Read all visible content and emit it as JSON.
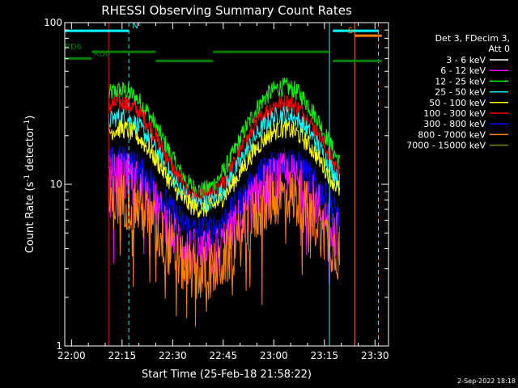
{
  "chart_data": {
    "type": "line",
    "title": "RHESSI Observing Summary Count Rates",
    "xlabel": "Start Time (25-Feb-18 21:58:22)",
    "ylabel_main": "Count Rate (s",
    "ylabel_sup1": "-1",
    "ylabel_mid": " detector",
    "ylabel_sup2": "-1",
    "ylabel_end": ")",
    "y_scale": "log",
    "ylim": [
      1,
      100
    ],
    "xlim_minutes": [
      -2,
      94
    ],
    "x_tick_labels": [
      "22:00",
      "22:15",
      "22:30",
      "22:45",
      "23:00",
      "23:15",
      "23:30"
    ],
    "x_tick_minutes": [
      0,
      15,
      30,
      45,
      60,
      75,
      90
    ],
    "y_tick_labels": [
      "1",
      "10",
      "100"
    ],
    "y_tick_values": [
      1,
      10,
      100
    ],
    "legend_header": [
      "Det 3, FDecim 3,",
      "Att 0"
    ],
    "legend_placement": "right",
    "series": [
      {
        "name": "3 - 6 keV",
        "color": "#ffffff"
      },
      {
        "name": "6 - 12 keV",
        "color": "#ff00ff"
      },
      {
        "name": "12 - 25 keV",
        "color": "#00ff00"
      },
      {
        "name": "25 - 50 keV",
        "color": "#00ffff"
      },
      {
        "name": "50 - 100 keV",
        "color": "#ffff00"
      },
      {
        "name": "100 - 300 keV",
        "color": "#ff0000"
      },
      {
        "name": "300 - 800 keV",
        "color": "#0000ff"
      },
      {
        "name": "800 - 7000 keV",
        "color": "#ff8000"
      },
      {
        "name": "7000 - 15000 keV",
        "color": "#808000"
      }
    ],
    "profiles": [
      {
        "color": "#00ff00",
        "base": 7.5,
        "peak1": 38,
        "peak2": 40,
        "noise": 0.06
      },
      {
        "color": "#ff0000",
        "base": 6.8,
        "peak1": 32,
        "peak2": 32,
        "noise": 0.06
      },
      {
        "color": "#00ffff",
        "base": 6.5,
        "peak1": 26,
        "peak2": 27,
        "noise": 0.06
      },
      {
        "color": "#ffff00",
        "base": 6.2,
        "peak1": 22,
        "peak2": 22,
        "noise": 0.06
      },
      {
        "color": "#0000ff",
        "base": 4.6,
        "peak1": 14,
        "peak2": 14,
        "noise": 0.1
      },
      {
        "color": "#ff00ff",
        "base": 3.2,
        "peak1": 11,
        "peak2": 11,
        "noise": 0.16
      },
      {
        "color": "#ff8000",
        "base": 2.5,
        "peak1": 8,
        "peak2": 8.5,
        "noise": 0.18
      }
    ],
    "profile_start_minutes": 11,
    "profile_end_minutes": 79.5,
    "profile_peak1_minutes": 14.5,
    "profile_peak2_minutes": 63,
    "profile_sigma_minutes": 9,
    "vertical_markers": [
      {
        "minute": -2,
        "color": "#00ffff",
        "dashed": false
      },
      {
        "minute": 11,
        "color": "#ff0000",
        "dashed": false
      },
      {
        "minute": 17,
        "color": "#00ffff",
        "dashed": true
      },
      {
        "minute": 76.5,
        "color": "#00ffff",
        "dashed": false
      },
      {
        "minute": 84,
        "color": "#ff8000",
        "dashed": false
      },
      {
        "minute": 91,
        "color": "#00ffff",
        "dashed": true
      }
    ],
    "bars": [
      {
        "label": "N",
        "color": "#00ffff",
        "y": 89,
        "segments": [
          [
            -2,
            17
          ],
          [
            77.5,
            91
          ]
        ],
        "label_minute": 18
      },
      {
        "label": "S",
        "color": "#ff8000",
        "y": 83,
        "segments": [
          [
            84,
            92
          ]
        ],
        "label_minute": 82
      },
      {
        "label": "RD0",
        "color": "#008000",
        "y": 60,
        "segments": [
          [
            -2,
            6
          ]
        ],
        "label_minute": 6.5
      },
      {
        "label": "",
        "color": "#008000",
        "y": 58,
        "segments": [
          [
            25,
            42
          ],
          [
            77.5,
            92
          ]
        ],
        "label_minute": 0
      },
      {
        "label": "RD6",
        "color": "#008000",
        "y": 66,
        "segments": [
          [
            6,
            25
          ],
          [
            42,
            76.5
          ]
        ],
        "label_minute": -2
      }
    ],
    "timestamp": "2-Sep-2022 18:18"
  }
}
